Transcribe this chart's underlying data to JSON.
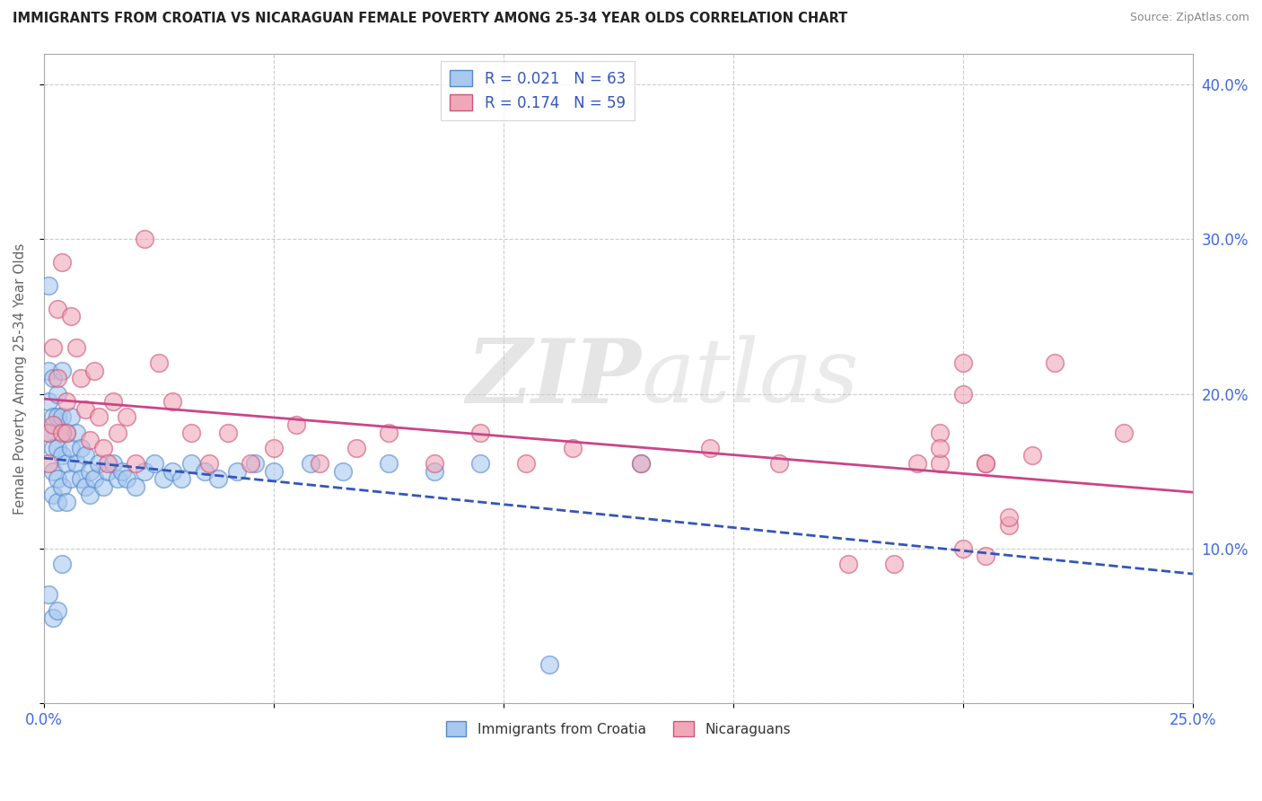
{
  "title": "IMMIGRANTS FROM CROATIA VS NICARAGUAN FEMALE POVERTY AMONG 25-34 YEAR OLDS CORRELATION CHART",
  "source": "Source: ZipAtlas.com",
  "ylabel": "Female Poverty Among 25-34 Year Olds",
  "xlim": [
    0.0,
    0.25
  ],
  "ylim": [
    0.0,
    0.42
  ],
  "R1": 0.021,
  "N1": 63,
  "R2": 0.174,
  "N2": 59,
  "legend1_label": "Immigrants from Croatia",
  "legend2_label": "Nicaraguans",
  "series1_color": "#a8c8f0",
  "series1_edge": "#5588cc",
  "series2_color": "#f0a8b8",
  "series2_edge": "#cc5577",
  "trend1_color": "#3355bb",
  "trend2_color": "#cc4488",
  "watermark_zip": "ZIP",
  "watermark_atlas": "atlas",
  "scatter1_x": [
    0.001,
    0.001,
    0.001,
    0.001,
    0.001,
    0.002,
    0.002,
    0.002,
    0.002,
    0.002,
    0.002,
    0.003,
    0.003,
    0.003,
    0.003,
    0.003,
    0.003,
    0.004,
    0.004,
    0.004,
    0.004,
    0.004,
    0.005,
    0.005,
    0.005,
    0.006,
    0.006,
    0.006,
    0.007,
    0.007,
    0.008,
    0.008,
    0.009,
    0.009,
    0.01,
    0.01,
    0.011,
    0.012,
    0.013,
    0.014,
    0.015,
    0.016,
    0.017,
    0.018,
    0.02,
    0.022,
    0.024,
    0.026,
    0.028,
    0.03,
    0.032,
    0.035,
    0.038,
    0.042,
    0.046,
    0.05,
    0.058,
    0.065,
    0.075,
    0.085,
    0.095,
    0.11,
    0.13
  ],
  "scatter1_y": [
    0.27,
    0.215,
    0.195,
    0.175,
    0.07,
    0.21,
    0.185,
    0.165,
    0.15,
    0.135,
    0.055,
    0.2,
    0.185,
    0.165,
    0.145,
    0.13,
    0.06,
    0.215,
    0.185,
    0.16,
    0.14,
    0.09,
    0.175,
    0.155,
    0.13,
    0.185,
    0.165,
    0.145,
    0.175,
    0.155,
    0.165,
    0.145,
    0.16,
    0.14,
    0.15,
    0.135,
    0.145,
    0.155,
    0.14,
    0.15,
    0.155,
    0.145,
    0.15,
    0.145,
    0.14,
    0.15,
    0.155,
    0.145,
    0.15,
    0.145,
    0.155,
    0.15,
    0.145,
    0.15,
    0.155,
    0.15,
    0.155,
    0.15,
    0.155,
    0.15,
    0.155,
    0.025,
    0.155
  ],
  "scatter2_x": [
    0.001,
    0.001,
    0.002,
    0.002,
    0.003,
    0.003,
    0.004,
    0.004,
    0.005,
    0.005,
    0.006,
    0.007,
    0.008,
    0.009,
    0.01,
    0.011,
    0.012,
    0.013,
    0.014,
    0.015,
    0.016,
    0.018,
    0.02,
    0.022,
    0.025,
    0.028,
    0.032,
    0.036,
    0.04,
    0.045,
    0.05,
    0.055,
    0.06,
    0.068,
    0.075,
    0.085,
    0.095,
    0.105,
    0.115,
    0.13,
    0.145,
    0.16,
    0.175,
    0.19,
    0.205,
    0.22,
    0.235,
    0.215,
    0.205,
    0.2,
    0.195,
    0.21,
    0.2,
    0.185,
    0.2,
    0.195,
    0.205,
    0.21,
    0.195
  ],
  "scatter2_y": [
    0.175,
    0.155,
    0.23,
    0.18,
    0.255,
    0.21,
    0.175,
    0.285,
    0.195,
    0.175,
    0.25,
    0.23,
    0.21,
    0.19,
    0.17,
    0.215,
    0.185,
    0.165,
    0.155,
    0.195,
    0.175,
    0.185,
    0.155,
    0.3,
    0.22,
    0.195,
    0.175,
    0.155,
    0.175,
    0.155,
    0.165,
    0.18,
    0.155,
    0.165,
    0.175,
    0.155,
    0.175,
    0.155,
    0.165,
    0.155,
    0.165,
    0.155,
    0.09,
    0.155,
    0.095,
    0.22,
    0.175,
    0.16,
    0.155,
    0.1,
    0.155,
    0.115,
    0.2,
    0.09,
    0.22,
    0.175,
    0.155,
    0.12,
    0.165
  ]
}
